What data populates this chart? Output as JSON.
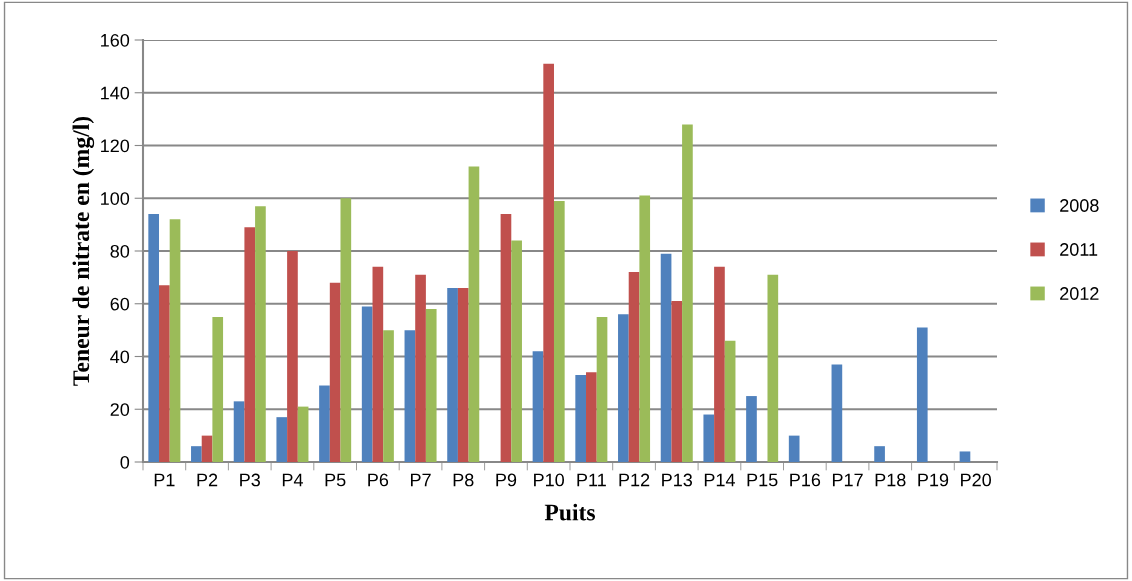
{
  "chart_data": {
    "type": "bar",
    "xlabel": "Puits",
    "ylabel": "Teneur de nitrate en (mg/l)",
    "categories": [
      "P1",
      "P2",
      "P3",
      "P4",
      "P5",
      "P6",
      "P7",
      "P8",
      "P9",
      "P10",
      "P11",
      "P12",
      "P13",
      "P14",
      "P15",
      "P16",
      "P17",
      "P18",
      "P19",
      "P20"
    ],
    "series": [
      {
        "name": "2008",
        "color": "#4f81bd",
        "values": [
          94,
          6,
          23,
          17,
          29,
          59,
          50,
          66,
          null,
          42,
          33,
          56,
          79,
          18,
          25,
          10,
          37,
          6,
          51,
          4
        ]
      },
      {
        "name": "2011",
        "color": "#c0504d",
        "values": [
          67,
          10,
          89,
          80,
          68,
          74,
          71,
          66,
          94,
          151,
          34,
          72,
          61,
          74,
          null,
          null,
          null,
          null,
          null,
          null
        ]
      },
      {
        "name": "2012",
        "color": "#9bbb59",
        "values": [
          92,
          55,
          97,
          21,
          100,
          50,
          58,
          112,
          84,
          99,
          55,
          101,
          128,
          46,
          71,
          null,
          null,
          null,
          null,
          null
        ]
      }
    ],
    "ylim": [
      0,
      160
    ],
    "yticks": [
      0,
      20,
      40,
      60,
      80,
      100,
      120,
      140,
      160
    ],
    "grid": "y",
    "legend": "right"
  }
}
